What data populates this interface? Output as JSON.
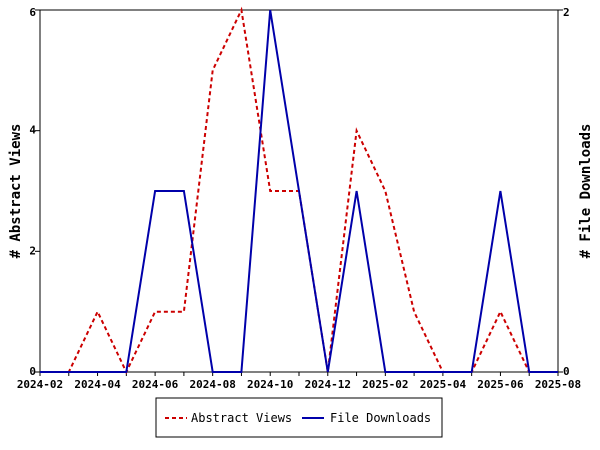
{
  "chart_data": {
    "type": "line",
    "x": [
      "2024-02",
      "2024-03",
      "2024-04",
      "2024-05",
      "2024-06",
      "2024-07",
      "2024-08",
      "2024-09",
      "2024-10",
      "2024-11",
      "2024-12",
      "2025-01",
      "2025-02",
      "2025-03",
      "2025-04",
      "2025-05",
      "2025-06",
      "2025-07",
      "2025-08"
    ],
    "x_tick_labels": [
      "2024-02",
      "2024-04",
      "2024-06",
      "2024-08",
      "2024-10",
      "2024-12",
      "2025-02",
      "2025-04",
      "2025-06",
      "2025-08"
    ],
    "ylabel": "# Abstract Views",
    "y2label": "# File Downloads",
    "ylim": [
      0,
      6
    ],
    "y_ticks": [
      0,
      2,
      4,
      6
    ],
    "y2lim": [
      0,
      2
    ],
    "y2_ticks": [
      0,
      2
    ],
    "grid": false,
    "legend_position": "bottom-center",
    "series": [
      {
        "name": "Abstract Views",
        "axis": "left",
        "color": "#cc0000",
        "dash": "dashed",
        "values": [
          0,
          0,
          1,
          0,
          1,
          1,
          5,
          6,
          3,
          3,
          0,
          4,
          3,
          1,
          0,
          0,
          1,
          0,
          0
        ]
      },
      {
        "name": "File Downloads",
        "axis": "right",
        "color": "#0000aa",
        "dash": "solid",
        "values": [
          0,
          0,
          0,
          0,
          1,
          1,
          0,
          0,
          2,
          1,
          0,
          1,
          0,
          0,
          0,
          0,
          1,
          0,
          0
        ]
      }
    ]
  }
}
